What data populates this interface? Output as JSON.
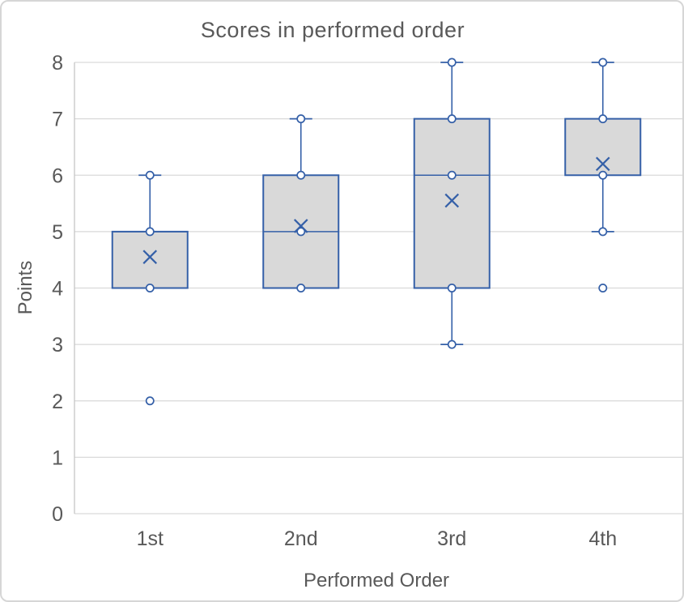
{
  "chart_data": {
    "type": "boxplot",
    "title": "Scores in performed order",
    "xlabel": "Performed Order",
    "ylabel": "Points",
    "categories": [
      "1st",
      "2nd",
      "3rd",
      "4th"
    ],
    "ylim": [
      0,
      8
    ],
    "yticks": [
      0,
      1,
      2,
      3,
      4,
      5,
      6,
      7,
      8
    ],
    "grid": true,
    "legend": "none",
    "series": [
      {
        "category": "1st",
        "whisker_low": 4,
        "q1": 4,
        "median": 5,
        "q3": 5,
        "whisker_high": 6,
        "mean": 4.55,
        "points": [
          6,
          5,
          4
        ],
        "outliers": [
          2
        ]
      },
      {
        "category": "2nd",
        "whisker_low": 4,
        "q1": 4,
        "median": 5,
        "q3": 6,
        "whisker_high": 7,
        "mean": 5.1,
        "points": [
          7,
          6,
          5,
          4
        ],
        "outliers": []
      },
      {
        "category": "3rd",
        "whisker_low": 3,
        "q1": 4,
        "median": 6,
        "q3": 7,
        "whisker_high": 8,
        "mean": 5.55,
        "points": [
          8,
          7,
          6,
          4,
          3
        ],
        "outliers": []
      },
      {
        "category": "4th",
        "whisker_low": 5,
        "q1": 6,
        "median": 6,
        "q3": 7,
        "whisker_high": 8,
        "mean": 6.2,
        "points": [
          8,
          7,
          6,
          5
        ],
        "outliers": [
          4
        ]
      }
    ],
    "colors": {
      "box_fill": "#d9d9d9",
      "box_stroke": "#3560a8",
      "marker_stroke": "#3560a8",
      "marker_fill": "#ffffff",
      "grid": "#d9d9d9",
      "axis": "#c6c6c6",
      "text": "#595959"
    }
  }
}
